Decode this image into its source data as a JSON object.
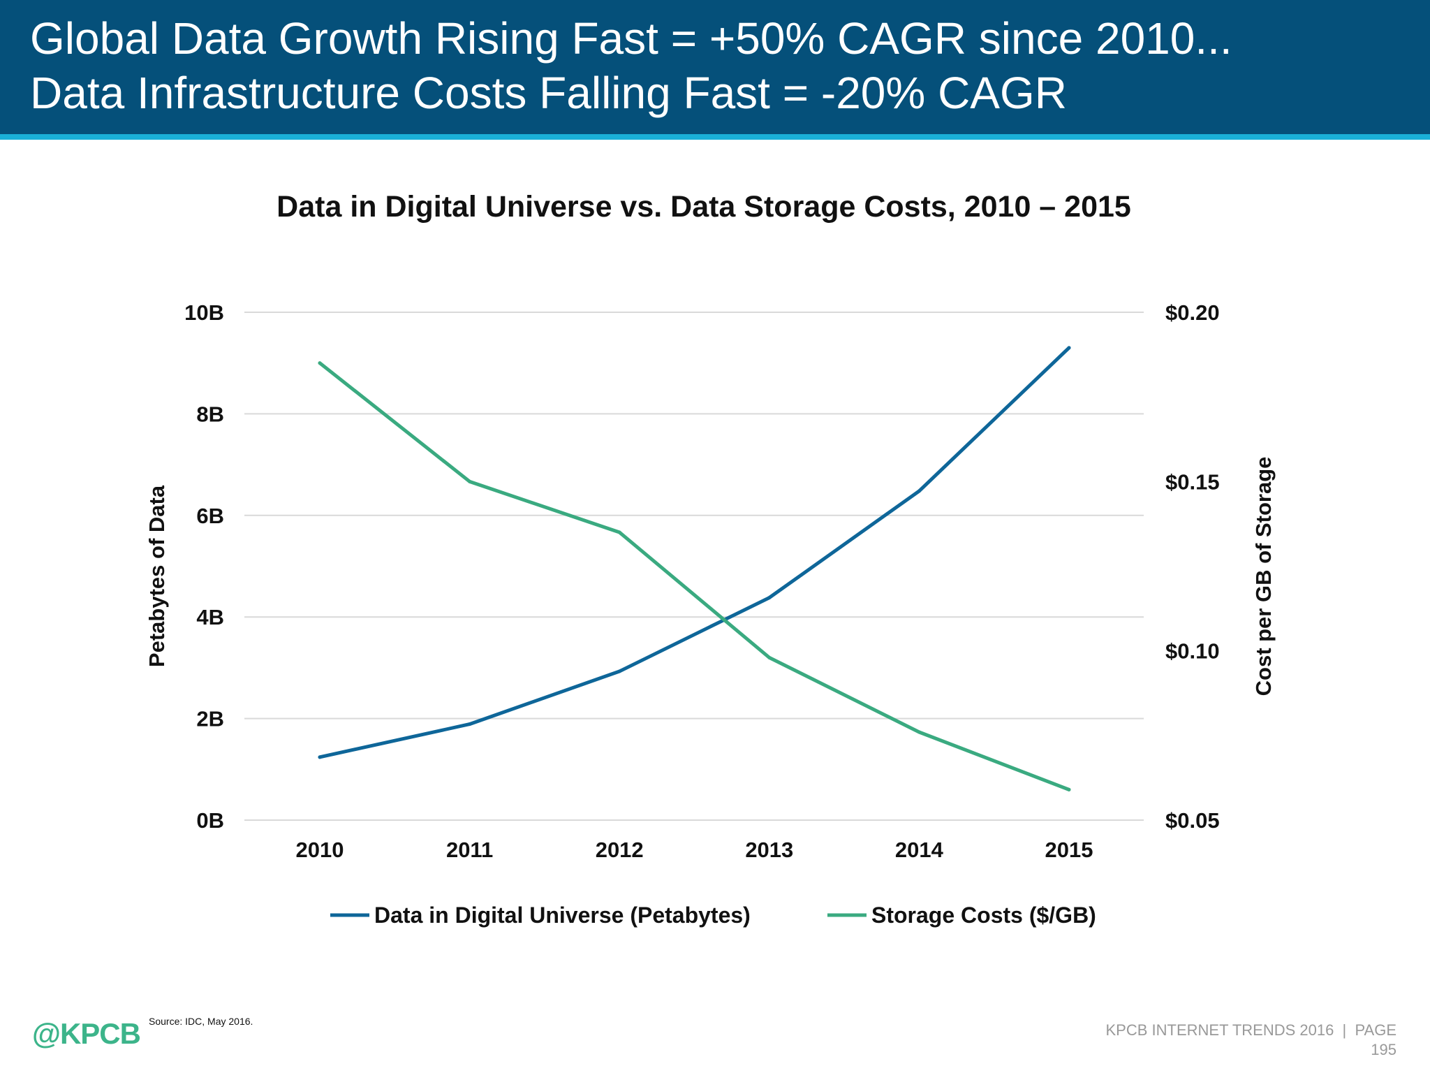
{
  "header": {
    "line1": "Global Data Growth Rising Fast = +50% CAGR since 2010...",
    "line2": "Data Infrastructure Costs Falling Fast = -20% CAGR"
  },
  "colors": {
    "header": "#05507a",
    "accent": "#1ab0d8",
    "series_blue": "#0e6699",
    "series_green": "#3aaa80"
  },
  "chart_data": {
    "type": "line",
    "title": "Data in Digital Universe vs. Data Storage Costs, 2010 – 2015",
    "categories": [
      "2010",
      "2011",
      "2012",
      "2013",
      "2014",
      "2015"
    ],
    "ylabel_left": "Petabytes of Data",
    "ylabel_right": "Cost per GB of Storage",
    "ylim_left": [
      0,
      10
    ],
    "ylim_right": [
      0.05,
      0.2
    ],
    "yticks_left": [
      "0B",
      "2B",
      "4B",
      "6B",
      "8B",
      "10B"
    ],
    "yticks_right": [
      "$0.05",
      "$0.10",
      "$0.15",
      "$0.20"
    ],
    "grid": true,
    "legend": "bottom",
    "series": [
      {
        "name": "Data in Digital Universe (Petabytes)",
        "axis": "left",
        "unit": "billion petabytes",
        "values": [
          1.24,
          1.89,
          2.93,
          4.38,
          6.48,
          9.3
        ]
      },
      {
        "name": "Storage Costs ($/GB)",
        "axis": "right",
        "unit": "$/GB",
        "values": [
          0.185,
          0.15,
          0.135,
          0.098,
          0.076,
          0.059
        ]
      }
    ]
  },
  "footer": {
    "source": "Source: IDC, May 2016.",
    "logo": "@KPCB",
    "trend_line1": "KPCB INTERNET TRENDS 2016  |  PAGE",
    "trend_line2": "195"
  }
}
